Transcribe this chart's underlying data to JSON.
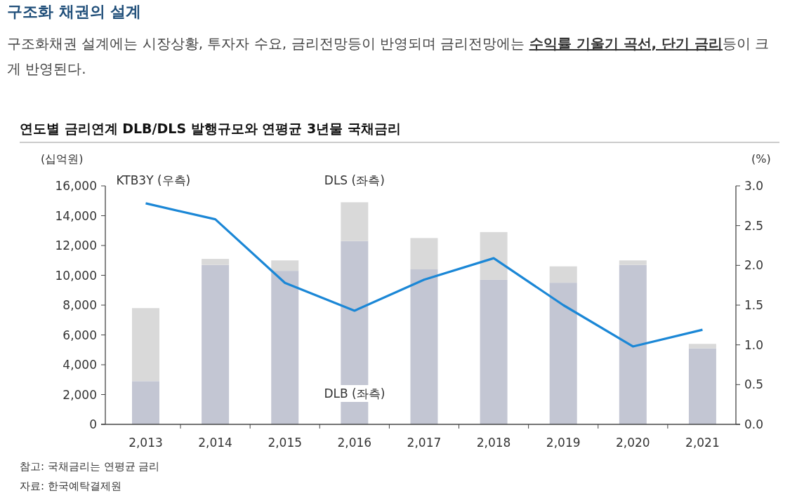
{
  "chart_data": {
    "type": "bar",
    "stacked": true,
    "title": "연도별 금리연계 DLB/DLS 발행규모와 연평균 3년물 국채금리",
    "ylabel": "(십억원)",
    "y2label": "(%)",
    "categories": [
      "2,013",
      "2,014",
      "2,015",
      "2,016",
      "2,017",
      "2,018",
      "2,019",
      "2,020",
      "2,021"
    ],
    "series": [
      {
        "name": "DLB (좌측)",
        "color": "#c3c6d3",
        "values": [
          2900,
          10700,
          10300,
          12300,
          10400,
          9700,
          9500,
          10700,
          5100
        ]
      },
      {
        "name": "DLS (좌측)",
        "color": "#d9d9d9",
        "values": [
          4900,
          400,
          700,
          2600,
          2100,
          3200,
          1100,
          300,
          300
        ]
      },
      {
        "name": "KTB3Y (우측)",
        "type": "line",
        "axis": "y2",
        "color": "#1b87d6",
        "values": [
          2.78,
          2.58,
          1.78,
          1.43,
          1.82,
          2.09,
          1.5,
          0.98,
          1.19
        ]
      }
    ],
    "ylim": [
      0,
      16000
    ],
    "yticks": [
      {
        "value": 0,
        "label": "0"
      },
      {
        "value": 2000,
        "label": "2,000"
      },
      {
        "value": 4000,
        "label": "4,000"
      },
      {
        "value": 6000,
        "label": "6,000"
      },
      {
        "value": 8000,
        "label": "8,000"
      },
      {
        "value": 10000,
        "label": "10,000"
      },
      {
        "value": 12000,
        "label": "12,000"
      },
      {
        "value": 14000,
        "label": "14,000"
      },
      {
        "value": 16000,
        "label": "16,000"
      }
    ],
    "y2lim": [
      0,
      3
    ],
    "y2ticks": [
      {
        "value": 0,
        "label": "0.0"
      },
      {
        "value": 0.5,
        "label": "0.5"
      },
      {
        "value": 1,
        "label": "1.0"
      },
      {
        "value": 1.5,
        "label": "1.5"
      },
      {
        "value": 2,
        "label": "2.0"
      },
      {
        "value": 2.5,
        "label": "2.5"
      },
      {
        "value": 3,
        "label": "3.0"
      }
    ],
    "annotations": [
      "구조화 채권의 설계",
      "구조화채권 설계에는 시장상황, 투자자 수요, 금리전망등이 반영되며 금리전망에는 **수익률 기울기 곡선, 단기 금리**등이 크게 반영된다.",
      "참고: 국채금리는 연평균 금리",
      "자료: 한국예탁결제원"
    ]
  }
}
